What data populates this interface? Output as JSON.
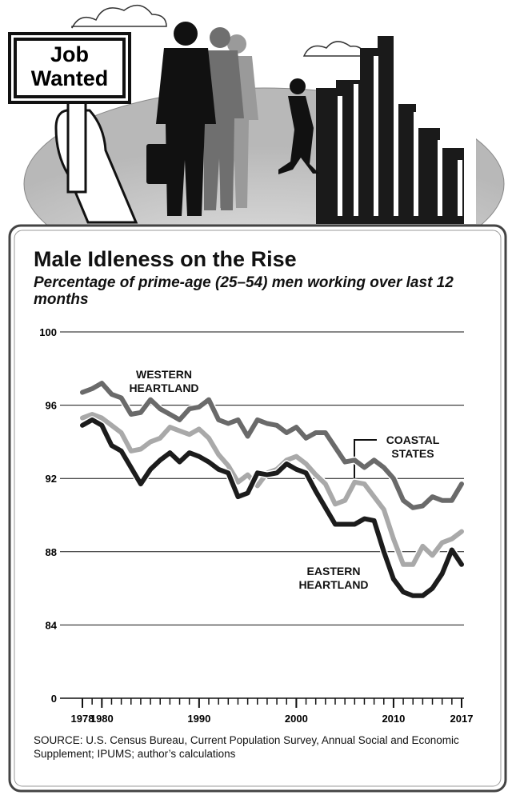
{
  "illustration": {
    "sign_lines": [
      "Job",
      "Wanted"
    ]
  },
  "chart_data": {
    "type": "line",
    "title": "Male Idleness on the Rise",
    "subtitle": "Percentage of prime-age (25–54) men working over last 12 months",
    "source": "SOURCE: U.S. Census Bureau, Current Population Survey, Annual Social and Economic Supplement; IPUMS; author’s calculations",
    "x": [
      1978,
      1979,
      1980,
      1981,
      1982,
      1983,
      1984,
      1985,
      1986,
      1987,
      1988,
      1989,
      1990,
      1991,
      1992,
      1993,
      1994,
      1995,
      1996,
      1997,
      1998,
      1999,
      2000,
      2001,
      2002,
      2003,
      2004,
      2005,
      2006,
      2007,
      2008,
      2009,
      2010,
      2011,
      2012,
      2013,
      2014,
      2015,
      2016,
      2017
    ],
    "series": [
      {
        "name": "WESTERN HEARTLAND",
        "color": "#6a6a6a",
        "values": [
          96.7,
          96.9,
          97.2,
          96.6,
          96.4,
          95.5,
          95.6,
          96.3,
          95.8,
          95.5,
          95.2,
          95.8,
          95.9,
          96.3,
          95.2,
          95.0,
          95.2,
          94.3,
          95.2,
          95.0,
          94.9,
          94.5,
          94.8,
          94.2,
          94.5,
          94.5,
          93.7,
          92.9,
          93.0,
          92.6,
          93.0,
          92.6,
          92.0,
          90.8,
          90.4,
          90.5,
          91.0,
          90.8,
          90.8,
          91.7
        ]
      },
      {
        "name": "COASTAL STATES",
        "color": "#a9a9a9",
        "values": [
          95.3,
          95.5,
          95.3,
          94.9,
          94.5,
          93.5,
          93.6,
          94.0,
          94.2,
          94.8,
          94.6,
          94.4,
          94.7,
          94.2,
          93.3,
          92.7,
          91.8,
          92.2,
          91.6,
          92.3,
          92.5,
          93.0,
          93.2,
          92.8,
          92.2,
          91.7,
          90.6,
          90.8,
          91.8,
          91.7,
          91.0,
          90.3,
          88.7,
          87.3,
          87.3,
          88.3,
          87.8,
          88.5,
          88.7,
          89.1
        ]
      },
      {
        "name": "EASTERN HEARTLAND",
        "color": "#1c1c1c",
        "values": [
          94.9,
          95.2,
          94.9,
          93.8,
          93.5,
          92.6,
          91.7,
          92.5,
          93.0,
          93.4,
          92.9,
          93.4,
          93.2,
          92.9,
          92.5,
          92.3,
          91.0,
          91.2,
          92.3,
          92.2,
          92.3,
          92.8,
          92.5,
          92.3,
          91.3,
          90.4,
          89.5,
          89.5,
          89.5,
          89.8,
          89.7,
          88.0,
          86.5,
          85.8,
          85.6,
          85.6,
          86.0,
          86.8,
          88.1,
          87.3
        ]
      }
    ],
    "xlim": [
      1978,
      2017
    ],
    "xticks": [
      1978,
      1980,
      1990,
      2000,
      2010,
      2017
    ],
    "minor_xticks": true,
    "ylim": [
      0,
      100
    ],
    "yticks": [
      0,
      84,
      88,
      92,
      96,
      100
    ],
    "axis_break": true,
    "grid": true
  }
}
